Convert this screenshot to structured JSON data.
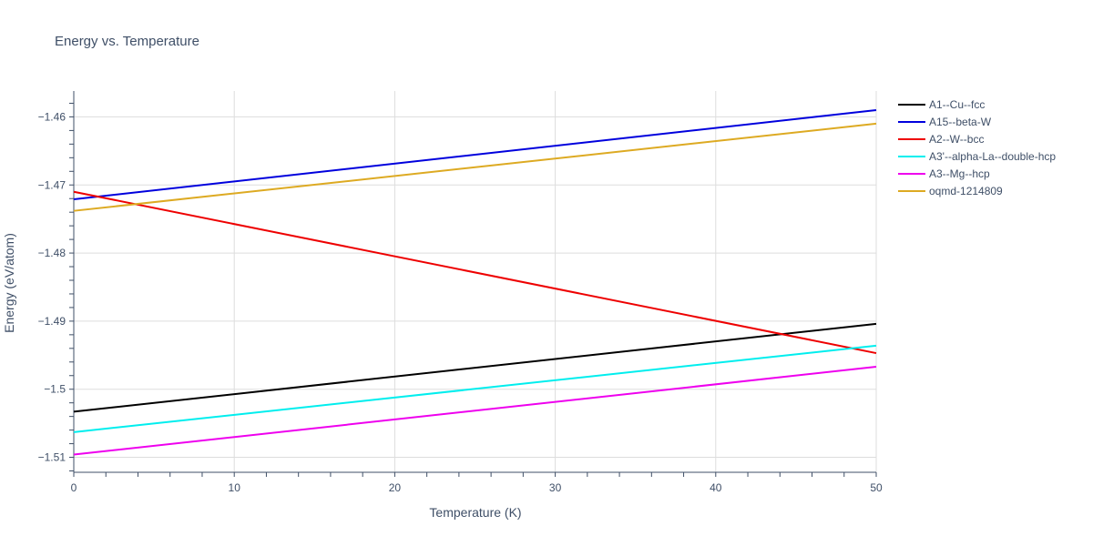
{
  "chart_data": {
    "type": "line",
    "title": "Energy vs. Temperature",
    "xlabel": "Temperature (K)",
    "ylabel": "Energy (eV/atom)",
    "xlim": [
      0,
      50
    ],
    "ylim": [
      -1.5122,
      -1.4562
    ],
    "xticks": [
      0,
      10,
      20,
      30,
      40,
      50
    ],
    "xtick_labels": [
      "0",
      "10",
      "20",
      "30",
      "40",
      "50"
    ],
    "yticks": [
      -1.46,
      -1.47,
      -1.48,
      -1.49,
      -1.5,
      -1.51
    ],
    "ytick_labels": [
      "−1.46",
      "−1.47",
      "−1.48",
      "−1.49",
      "−1.5",
      "−1.51"
    ],
    "grid": true,
    "legend_position": "right",
    "x": [
      0,
      50
    ],
    "series": [
      {
        "name": "A1--Cu--fcc",
        "color": "#000000",
        "values": [
          -1.5033,
          -1.4904
        ]
      },
      {
        "name": "A15--beta-W",
        "color": "#0000dd",
        "values": [
          -1.4721,
          -1.459
        ]
      },
      {
        "name": "A2--W--bcc",
        "color": "#ee0000",
        "values": [
          -1.471,
          -1.4947
        ]
      },
      {
        "name": "A3'--alpha-La--double-hcp",
        "color": "#00eeee",
        "values": [
          -1.5063,
          -1.4936
        ]
      },
      {
        "name": "A3--Mg--hcp",
        "color": "#ee00ee",
        "values": [
          -1.5096,
          -1.4967
        ]
      },
      {
        "name": "oqmd-1214809",
        "color": "#ddaa22",
        "values": [
          -1.4738,
          -1.461
        ]
      }
    ]
  }
}
